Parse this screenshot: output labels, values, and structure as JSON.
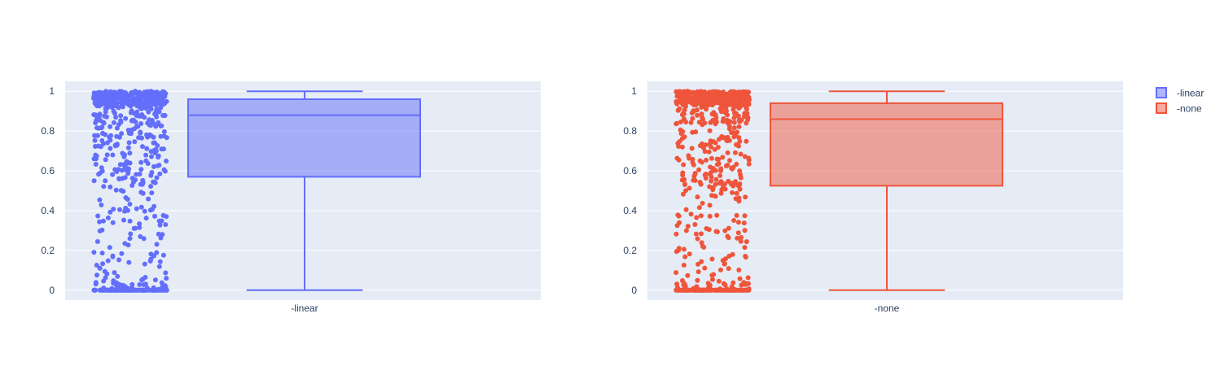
{
  "colors": {
    "plot_bg": "#E5ECF6",
    "grid": "#ffffff",
    "text": "#2a3f5f",
    "linear": "#636EFA",
    "none": "#EF553B"
  },
  "legend": {
    "items": [
      {
        "label": "-linear",
        "color": "#636EFA"
      },
      {
        "label": "-none",
        "color": "#EF553B"
      }
    ],
    "placement": "top-right"
  },
  "chart_data": [
    {
      "type": "box",
      "category": "-linear",
      "series_color": "#636EFA",
      "ylim": [
        -0.05,
        1.05
      ],
      "yticks": [
        0,
        0.2,
        0.4,
        0.6,
        0.8,
        1
      ],
      "ytick_labels": [
        "0",
        "0.2",
        "0.4",
        "0.6",
        "0.8",
        "1"
      ],
      "grid": true,
      "box": {
        "min": 0,
        "q1": 0.57,
        "median": 0.88,
        "q3": 0.96,
        "max": 1
      },
      "points": "all (jittered, dense near 0 and near 1)"
    },
    {
      "type": "box",
      "category": "-none",
      "series_color": "#EF553B",
      "ylim": [
        -0.05,
        1.05
      ],
      "yticks": [
        0,
        0.2,
        0.4,
        0.6,
        0.8,
        1
      ],
      "ytick_labels": [
        "0",
        "0.2",
        "0.4",
        "0.6",
        "0.8",
        "1"
      ],
      "grid": true,
      "box": {
        "min": 0,
        "q1": 0.525,
        "median": 0.86,
        "q3": 0.94,
        "max": 1
      },
      "points": "all (jittered, dense near 0 and near 1)"
    }
  ]
}
